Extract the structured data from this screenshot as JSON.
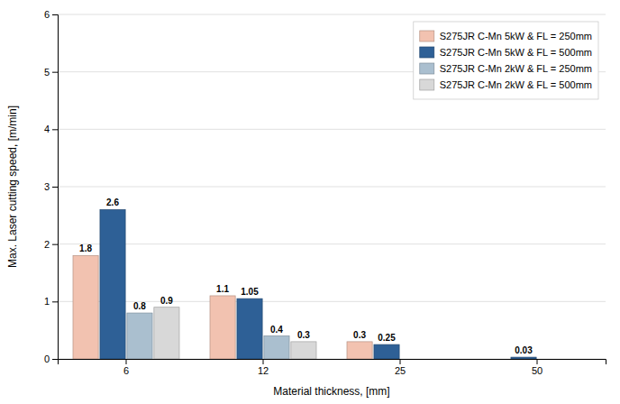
{
  "chart_data": {
    "type": "bar",
    "xlabel": "Material thickness, [mm]",
    "ylabel": "Max. Laser cutting speed, [m/min]",
    "categories": [
      "6",
      "12",
      "25",
      "50"
    ],
    "series": [
      {
        "name": "S275JR C-Mn 5kW & FL = 250mm",
        "color": "#f2c2b0",
        "values": [
          1.8,
          1.1,
          0.3,
          null
        ]
      },
      {
        "name": "S275JR C-Mn 5kW & FL = 500mm",
        "color": "#2e6096",
        "values": [
          2.6,
          1.05,
          0.25,
          0.03
        ]
      },
      {
        "name": "S275JR C-Mn 2kW & FL = 250mm",
        "color": "#aabfcf",
        "values": [
          0.8,
          0.4,
          null,
          null
        ]
      },
      {
        "name": "S275JR C-Mn 2kW & FL = 500mm",
        "color": "#d8d8d8",
        "values": [
          0.9,
          0.3,
          null,
          null
        ]
      }
    ],
    "ylim": [
      0,
      6
    ],
    "yticks": [
      0,
      1,
      2,
      3,
      4,
      5,
      6
    ],
    "grid": true,
    "legend": "upper-right",
    "data_labels": true
  }
}
